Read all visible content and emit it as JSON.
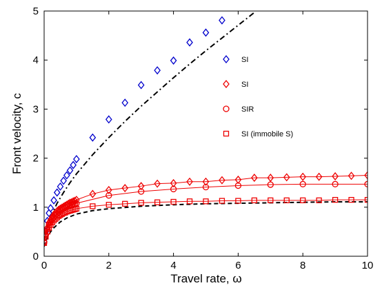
{
  "chart_data": {
    "type": "scatter",
    "xlabel": "Travel rate,",
    "xlabel_symbol": "ω",
    "ylabel": "Front velocity, c",
    "xlim": [
      0,
      10
    ],
    "ylim": [
      0,
      5
    ],
    "xticks": [
      "0",
      "2",
      "4",
      "6",
      "8",
      "10"
    ],
    "yticks": [
      "0",
      "1",
      "2",
      "3",
      "4",
      "5"
    ],
    "grid": false,
    "legend_position": "center-right",
    "series": [
      {
        "name": "SI",
        "marker": "diamond",
        "color": "#0000cc",
        "connect": false,
        "x": [
          0,
          0.05,
          0.1,
          0.15,
          0.2,
          0.3,
          0.4,
          0.5,
          0.6,
          0.7,
          0.8,
          0.9,
          1.0,
          1.5,
          2.0,
          2.5,
          3.0,
          3.5,
          4.0,
          4.5,
          5.0,
          5.5
        ],
        "y": [
          0.3,
          0.5,
          0.72,
          0.88,
          0.98,
          1.14,
          1.3,
          1.42,
          1.54,
          1.65,
          1.75,
          1.86,
          1.98,
          2.42,
          2.79,
          3.13,
          3.49,
          3.79,
          3.99,
          4.36,
          4.56,
          4.81
        ]
      },
      {
        "name": "SI",
        "marker": "diamond",
        "color": "#ee0000",
        "connect": true,
        "x": [
          0,
          0.05,
          0.1,
          0.15,
          0.2,
          0.25,
          0.3,
          0.35,
          0.4,
          0.45,
          0.5,
          0.55,
          0.6,
          0.65,
          0.7,
          0.75,
          0.8,
          0.85,
          0.9,
          0.95,
          1.0,
          1.5,
          2.0,
          2.5,
          3.0,
          3.5,
          4.0,
          4.5,
          5.0,
          5.5,
          6.0,
          6.5,
          7.0,
          7.5,
          8.0,
          8.5,
          9.0,
          9.5,
          10.0
        ],
        "y": [
          0.3,
          0.45,
          0.58,
          0.68,
          0.74,
          0.8,
          0.85,
          0.88,
          0.92,
          0.95,
          0.97,
          0.99,
          1.01,
          1.03,
          1.05,
          1.07,
          1.09,
          1.1,
          1.12,
          1.13,
          1.15,
          1.27,
          1.35,
          1.39,
          1.43,
          1.48,
          1.49,
          1.52,
          1.52,
          1.55,
          1.56,
          1.6,
          1.6,
          1.61,
          1.62,
          1.62,
          1.63,
          1.64,
          1.65
        ]
      },
      {
        "name": "SIR",
        "marker": "circle",
        "color": "#ee0000",
        "connect": true,
        "x": [
          0,
          0.05,
          0.1,
          0.15,
          0.2,
          0.25,
          0.3,
          0.35,
          0.4,
          0.45,
          0.5,
          0.55,
          0.6,
          0.65,
          0.7,
          0.75,
          0.8,
          0.85,
          0.9,
          0.95,
          1.0,
          2.0,
          3.0,
          4.0,
          5.0,
          6.0,
          7.0,
          8.0,
          9.0,
          10.0
        ],
        "y": [
          0.28,
          0.43,
          0.55,
          0.64,
          0.7,
          0.76,
          0.8,
          0.84,
          0.87,
          0.9,
          0.93,
          0.95,
          0.97,
          0.99,
          1.01,
          1.02,
          1.04,
          1.05,
          1.06,
          1.07,
          1.08,
          1.24,
          1.32,
          1.37,
          1.41,
          1.44,
          1.46,
          1.47,
          1.47,
          1.47
        ]
      },
      {
        "name": "SI (immobile S)",
        "marker": "square",
        "color": "#ee0000",
        "connect": true,
        "x": [
          0,
          0.05,
          0.1,
          0.15,
          0.2,
          0.25,
          0.3,
          0.35,
          0.4,
          0.45,
          0.5,
          0.55,
          0.6,
          0.65,
          0.7,
          0.75,
          0.8,
          0.85,
          0.9,
          0.95,
          1.0,
          1.5,
          2.0,
          2.5,
          3.0,
          3.5,
          4.0,
          4.5,
          5.0,
          5.5,
          6.0,
          6.5,
          7.0,
          7.5,
          8.0,
          8.5,
          9.0,
          9.5,
          10.0
        ],
        "y": [
          0.27,
          0.4,
          0.5,
          0.58,
          0.64,
          0.69,
          0.73,
          0.76,
          0.79,
          0.82,
          0.84,
          0.86,
          0.88,
          0.89,
          0.91,
          0.92,
          0.93,
          0.94,
          0.95,
          0.96,
          0.97,
          1.02,
          1.05,
          1.07,
          1.09,
          1.1,
          1.11,
          1.12,
          1.12,
          1.13,
          1.13,
          1.14,
          1.14,
          1.14,
          1.14,
          1.14,
          1.15,
          1.15,
          1.15
        ]
      }
    ],
    "reference_curves": [
      {
        "style": "dashdot",
        "color": "#000000",
        "x": [
          0,
          0.1,
          0.2,
          0.4,
          0.6,
          0.8,
          1.0,
          1.5,
          2.0,
          2.5,
          3.0,
          3.5,
          4.0,
          4.5,
          5.0,
          5.5,
          6.0,
          6.5
        ],
        "y": [
          0.3,
          0.62,
          0.8,
          1.08,
          1.3,
          1.5,
          1.68,
          2.07,
          2.42,
          2.75,
          3.06,
          3.35,
          3.64,
          3.92,
          4.19,
          4.45,
          4.71,
          4.97
        ]
      },
      {
        "style": "dashed",
        "color": "#000000",
        "x": [
          0,
          0.05,
          0.1,
          0.2,
          0.3,
          0.5,
          0.7,
          1.0,
          1.5,
          2.0,
          3.0,
          4.0,
          5.0,
          6.0,
          7.0,
          8.0,
          9.0,
          10.0
        ],
        "y": [
          0.2,
          0.3,
          0.38,
          0.5,
          0.58,
          0.7,
          0.78,
          0.86,
          0.93,
          0.97,
          1.02,
          1.05,
          1.07,
          1.08,
          1.09,
          1.1,
          1.11,
          1.11
        ]
      }
    ]
  }
}
